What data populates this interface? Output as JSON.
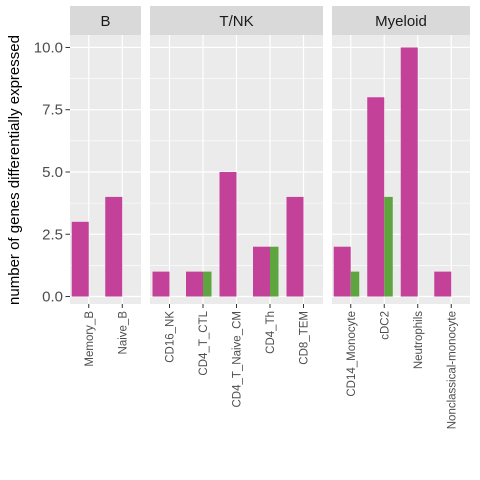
{
  "chart_data": {
    "type": "bar",
    "ylabel": "number of genes differentially expressed",
    "ylim": [
      -0.3,
      10.5
    ],
    "yticks": [
      0.0,
      2.5,
      5.0,
      7.5,
      10.0
    ],
    "ytick_labels": [
      "0.0",
      "2.5",
      "5.0",
      "7.5",
      "10.0"
    ],
    "grid": true,
    "colors": {
      "series_a": "#c4419a",
      "series_b": "#5ea43f",
      "panel_bg": "#ebebeb",
      "strip_bg": "#d9d9d9",
      "grid": "#ffffff"
    },
    "series": [
      {
        "key": "a"
      },
      {
        "key": "b"
      }
    ],
    "facets": [
      {
        "name": "B",
        "categories": [
          "Memory_B",
          "Naive_B"
        ],
        "values": {
          "a": [
            3,
            4
          ],
          "b": [
            0,
            0
          ]
        }
      },
      {
        "name": "T/NK",
        "categories": [
          "CD16_NK",
          "CD4_T_CTL",
          "CD4_T_Naive_CM",
          "CD4_Th",
          "CD8_TEM"
        ],
        "values": {
          "a": [
            1,
            1,
            5,
            2,
            4
          ],
          "b": [
            0,
            1,
            0,
            2,
            0
          ]
        }
      },
      {
        "name": "Myeloid",
        "categories": [
          "CD14_Monocyte",
          "cDC2",
          "Neutrophils",
          "Nonclassical-monocyte"
        ],
        "values": {
          "a": [
            2,
            8,
            10,
            1
          ],
          "b": [
            1,
            4,
            0,
            0
          ]
        }
      }
    ]
  }
}
